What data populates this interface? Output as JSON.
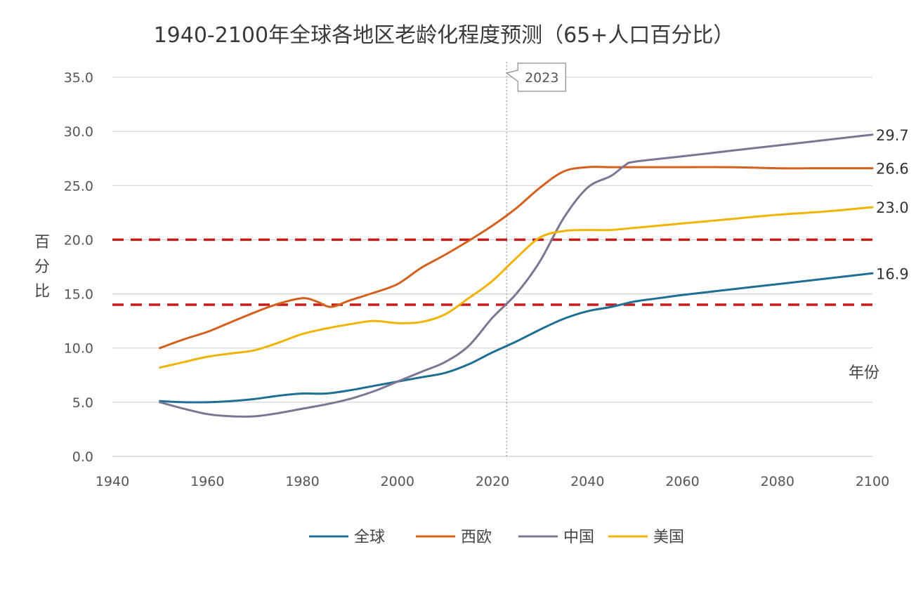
{
  "chart_data": {
    "type": "line",
    "title": "1940-2100年全球各地区老龄化程度预测（65+人口百分比）",
    "ylabel": "百分比",
    "xlabel": "年份",
    "xlim": [
      1940,
      2100
    ],
    "ylim": [
      0,
      35
    ],
    "xticks": [
      "1940",
      "1960",
      "1980",
      "2000",
      "2020",
      "2040",
      "2060",
      "2080",
      "2100"
    ],
    "yticks": [
      "0.0",
      "5.0",
      "10.0",
      "15.0",
      "20.0",
      "25.0",
      "30.0",
      "35.0"
    ],
    "grid": "horizontal",
    "legend_position": "bottom",
    "annotation": {
      "x": 2023,
      "label": "2023"
    },
    "reference_lines": [
      14,
      20
    ],
    "series": [
      {
        "name": "全球",
        "color": "#1f6f94",
        "x": [
          1950,
          1955,
          1960,
          1965,
          1970,
          1975,
          1980,
          1985,
          1990,
          1995,
          2000,
          2005,
          2010,
          2015,
          2020,
          2025,
          2030,
          2035,
          2040,
          2045,
          2050,
          2055,
          2060,
          2070,
          2080,
          2090,
          2100
        ],
        "y": [
          5.1,
          5.0,
          5.0,
          5.1,
          5.3,
          5.6,
          5.8,
          5.8,
          6.1,
          6.5,
          6.9,
          7.3,
          7.7,
          8.5,
          9.6,
          10.6,
          11.7,
          12.7,
          13.4,
          13.8,
          14.3,
          14.6,
          14.9,
          15.4,
          15.9,
          16.4,
          16.9
        ],
        "end_label": "16.9"
      },
      {
        "name": "西欧",
        "color": "#d4601e",
        "x": [
          1950,
          1955,
          1960,
          1965,
          1970,
          1975,
          1980,
          1983,
          1986,
          1990,
          1995,
          2000,
          2005,
          2010,
          2015,
          2020,
          2025,
          2030,
          2035,
          2040,
          2045,
          2050,
          2060,
          2070,
          2080,
          2090,
          2100
        ],
        "y": [
          10.0,
          10.8,
          11.5,
          12.4,
          13.3,
          14.1,
          14.6,
          14.3,
          13.8,
          14.4,
          15.1,
          15.9,
          17.4,
          18.6,
          19.9,
          21.3,
          22.9,
          24.8,
          26.3,
          26.7,
          26.7,
          26.7,
          26.7,
          26.7,
          26.6,
          26.6,
          26.6
        ],
        "end_label": "26.6"
      },
      {
        "name": "中国",
        "color": "#7d7592",
        "x": [
          1950,
          1955,
          1960,
          1965,
          1970,
          1975,
          1980,
          1985,
          1990,
          1995,
          2000,
          2005,
          2010,
          2015,
          2020,
          2025,
          2030,
          2035,
          2040,
          2045,
          2048,
          2050,
          2060,
          2070,
          2080,
          2090,
          2100
        ],
        "y": [
          5.0,
          4.4,
          3.9,
          3.7,
          3.7,
          4.0,
          4.4,
          4.8,
          5.3,
          6.0,
          6.9,
          7.8,
          8.7,
          10.2,
          12.8,
          15.0,
          18.0,
          22.0,
          24.8,
          25.9,
          26.9,
          27.2,
          27.7,
          28.2,
          28.7,
          29.2,
          29.7
        ],
        "end_label": "29.7"
      },
      {
        "name": "美国",
        "color": "#f0b400",
        "x": [
          1950,
          1955,
          1960,
          1965,
          1970,
          1975,
          1980,
          1985,
          1990,
          1995,
          2000,
          2005,
          2010,
          2015,
          2020,
          2025,
          2030,
          2035,
          2040,
          2045,
          2050,
          2060,
          2070,
          2080,
          2090,
          2100
        ],
        "y": [
          8.2,
          8.7,
          9.2,
          9.5,
          9.8,
          10.5,
          11.3,
          11.8,
          12.2,
          12.5,
          12.3,
          12.4,
          13.1,
          14.6,
          16.2,
          18.3,
          20.2,
          20.8,
          20.9,
          20.9,
          21.1,
          21.5,
          21.9,
          22.3,
          22.6,
          23.0
        ],
        "end_label": "23.0"
      }
    ]
  }
}
